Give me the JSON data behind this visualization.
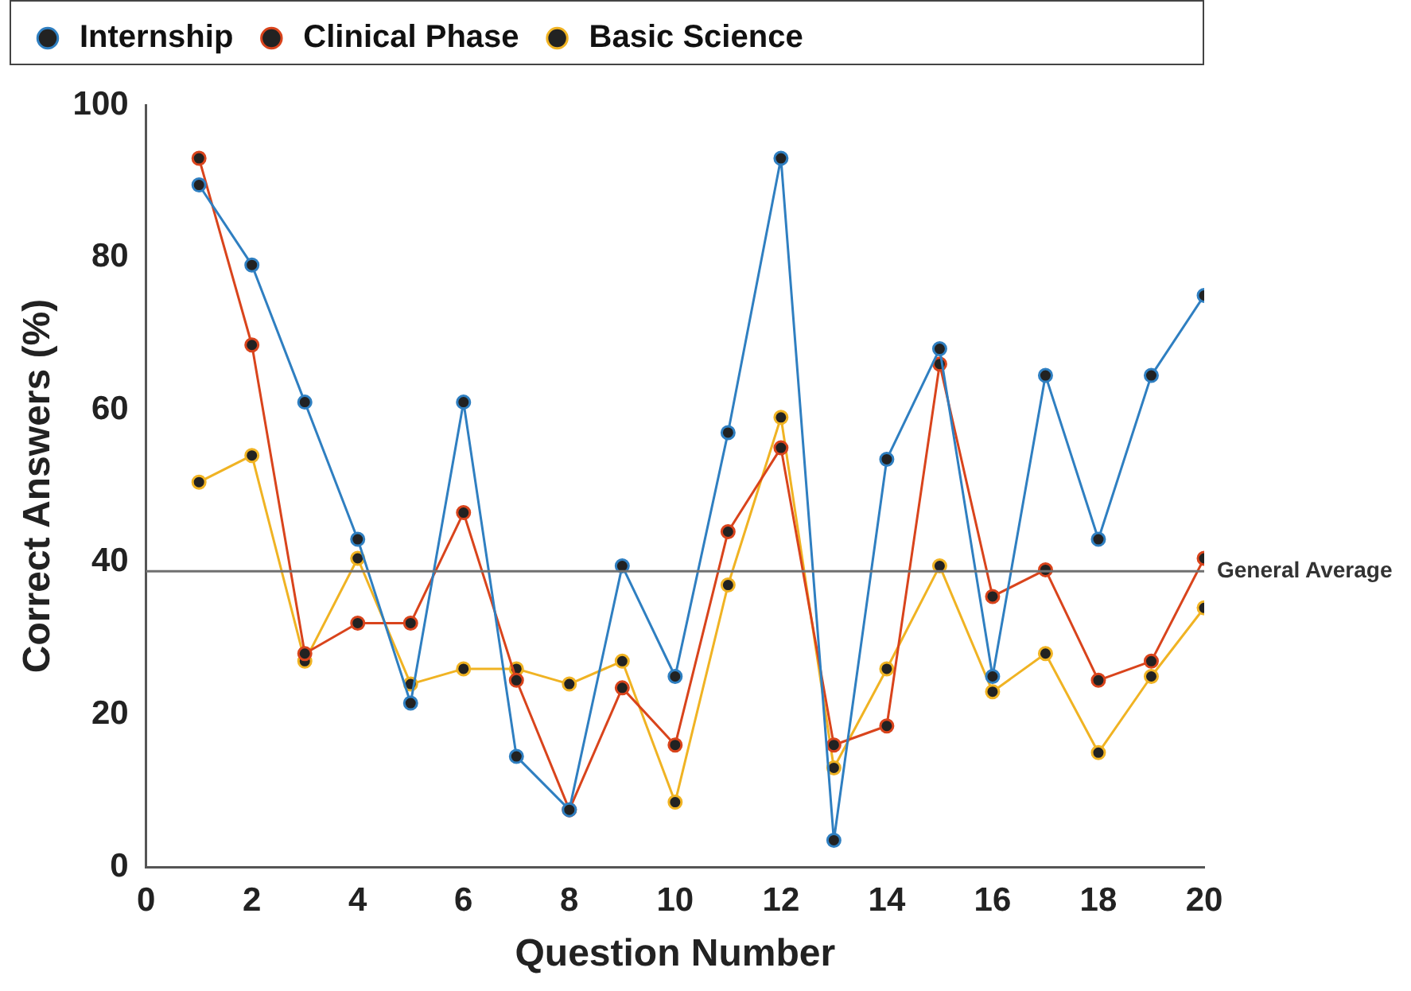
{
  "chart_data": {
    "type": "line",
    "xlabel": "Question Number",
    "ylabel": "Correct Answers (%)",
    "x": [
      1,
      2,
      3,
      4,
      5,
      6,
      7,
      8,
      9,
      10,
      11,
      12,
      13,
      14,
      15,
      16,
      17,
      18,
      19,
      20
    ],
    "series": [
      {
        "name": "Internship",
        "color": "#2f7fc1",
        "values": [
          89.5,
          79,
          61,
          43,
          21.5,
          61,
          14.5,
          7.5,
          39.5,
          25,
          57,
          93,
          3.5,
          53.5,
          68,
          25,
          64.5,
          43,
          64.5,
          75
        ]
      },
      {
        "name": "Clinical Phase",
        "color": "#d9441c",
        "values": [
          93,
          68.5,
          28,
          32,
          32,
          46.5,
          24.5,
          7.5,
          23.5,
          16,
          44,
          55,
          16,
          18.5,
          66,
          35.5,
          39,
          24.5,
          27,
          40.5
        ]
      },
      {
        "name": "Basic Science",
        "color": "#f0b323",
        "values": [
          50.5,
          54,
          27,
          40.5,
          24,
          26,
          26,
          24,
          27,
          8.5,
          37,
          59,
          13,
          26,
          39.5,
          23,
          28,
          15,
          25,
          34
        ]
      }
    ],
    "xlim": [
      0,
      20
    ],
    "xticks": [
      0,
      2,
      4,
      6,
      8,
      10,
      12,
      14,
      16,
      18,
      20
    ],
    "ylim": [
      0,
      100
    ],
    "yticks": [
      0,
      20,
      40,
      60,
      80,
      100
    ],
    "ref_lines": [
      {
        "axis": "y",
        "value": 38.8,
        "label": "General Average",
        "color": "#707070"
      }
    ],
    "grid": false,
    "legend": "top",
    "marker": "circle",
    "line_style": "solid"
  }
}
